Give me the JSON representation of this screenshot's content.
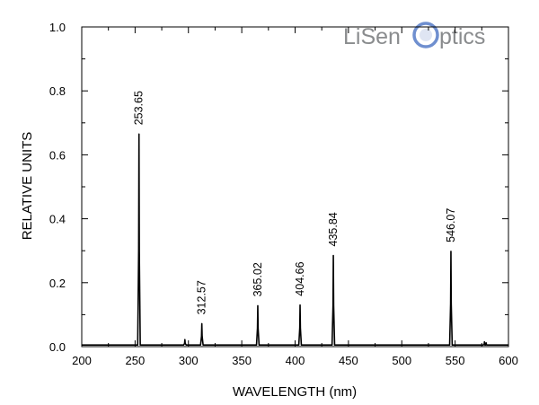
{
  "chart_data": {
    "type": "line",
    "title": "",
    "xlabel": "WAVELENGTH (nm)",
    "ylabel": "RELATIVE UNITS",
    "xlim": [
      200,
      600
    ],
    "ylim": [
      0,
      1.0
    ],
    "x_ticks": [
      200,
      250,
      300,
      350,
      400,
      450,
      500,
      550,
      600
    ],
    "x_tick_labels": [
      "200",
      "250",
      "300",
      "350",
      "400",
      "450",
      "500",
      "550",
      "600"
    ],
    "y_ticks": [
      0,
      0.2,
      0.4,
      0.6,
      0.8,
      1.0
    ],
    "y_tick_labels": [
      "0.0",
      "0.2",
      "0.4",
      "0.6",
      "0.8",
      "1.0"
    ],
    "grid": false,
    "line_color": "#000000",
    "baseline": 0.005,
    "peaks": [
      {
        "x": 253.65,
        "y": 0.665,
        "label": "253.65"
      },
      {
        "x": 296.7,
        "y": 0.022,
        "label": ""
      },
      {
        "x": 312.57,
        "y": 0.072,
        "label": "312.57"
      },
      {
        "x": 365.02,
        "y": 0.128,
        "label": "365.02"
      },
      {
        "x": 404.66,
        "y": 0.13,
        "label": "404.66"
      },
      {
        "x": 435.84,
        "y": 0.285,
        "label": "435.84"
      },
      {
        "x": 546.07,
        "y": 0.298,
        "label": "546.07"
      },
      {
        "x": 577.5,
        "y": 0.015,
        "label": ""
      },
      {
        "x": 579.1,
        "y": 0.012,
        "label": ""
      }
    ]
  },
  "logo": {
    "text_part1": "LiSen",
    "text_part2": "ptics",
    "color": "#8a8c8e",
    "accent_color": "#6f8fcf"
  }
}
